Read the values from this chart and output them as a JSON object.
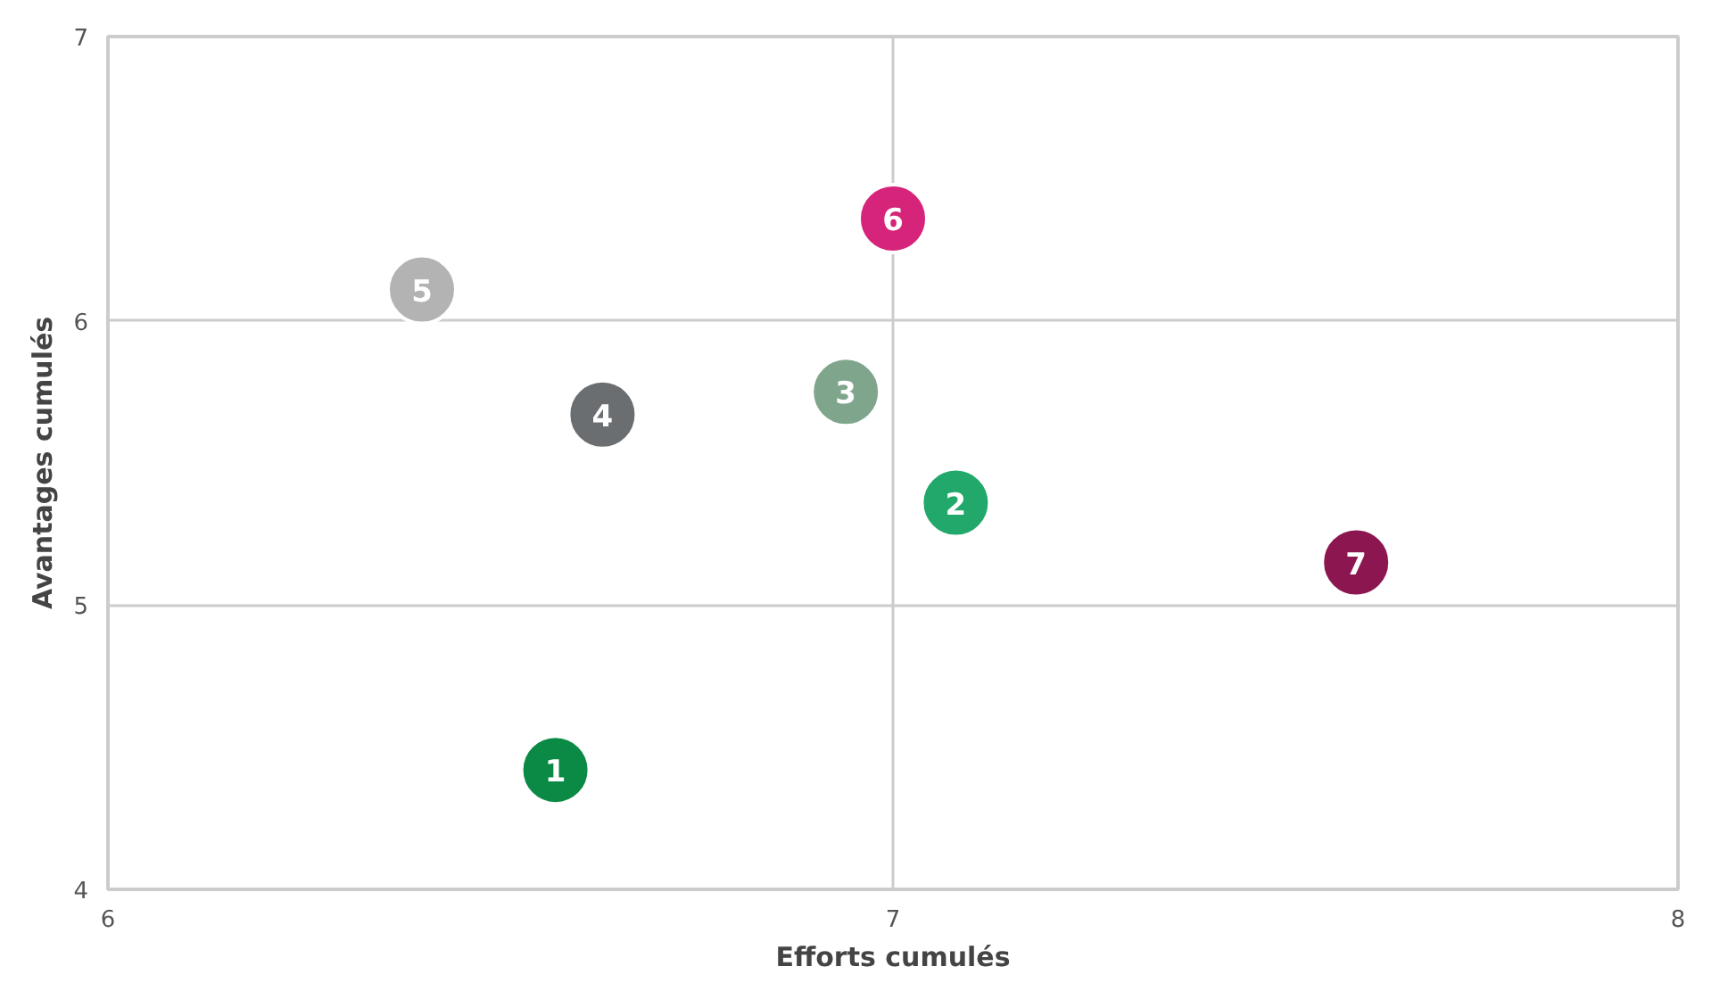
{
  "chart_data": {
    "type": "scatter",
    "xlabel": "Efforts cumulés",
    "ylabel": "Avantages cumulés",
    "x": [
      6.57,
      7.08,
      6.94,
      6.63,
      6.4,
      7.0,
      7.59
    ],
    "values": [
      4.42,
      5.36,
      5.75,
      5.67,
      6.11,
      6.36,
      5.15
    ],
    "colors": [
      "#0a8a45",
      "#22a86a",
      "#7fa68c",
      "#6b6e70",
      "#b3b3b3",
      "#d6247a",
      "#8c1650"
    ],
    "annotations": [
      {
        "text": "1",
        "x": 6.57,
        "y": 4.42
      },
      {
        "text": "2",
        "x": 7.08,
        "y": 5.36
      },
      {
        "text": "3",
        "x": 6.94,
        "y": 5.75
      },
      {
        "text": "4",
        "x": 6.63,
        "y": 5.67
      },
      {
        "text": "5",
        "x": 6.4,
        "y": 6.11
      },
      {
        "text": "6",
        "x": 7.0,
        "y": 6.36
      },
      {
        "text": "7",
        "x": 7.59,
        "y": 5.15
      }
    ],
    "xlim": [
      6,
      8
    ],
    "ylim": [
      4,
      7
    ],
    "xticks": [
      6,
      7,
      8
    ],
    "yticks": [
      4,
      5,
      6,
      7
    ],
    "grid": true,
    "marker": "circle"
  }
}
